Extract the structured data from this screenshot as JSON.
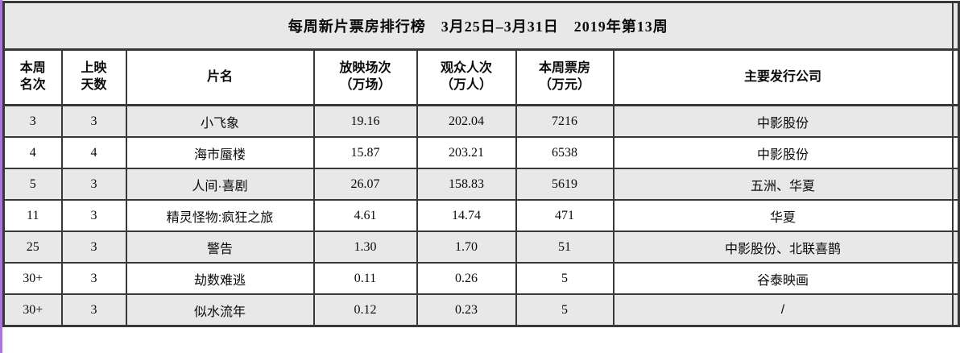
{
  "title": "每周新片票房排行榜　3月25日–3月31日　2019年第13周",
  "table": {
    "columns": [
      {
        "id": "rank",
        "lines": [
          "本周",
          "名次"
        ],
        "kind": "rank"
      },
      {
        "id": "days",
        "lines": [
          "上映",
          "天数"
        ],
        "kind": "days"
      },
      {
        "id": "film",
        "lines": [
          "片名"
        ],
        "kind": "name"
      },
      {
        "id": "screenings",
        "lines": [
          "放映场次",
          "（万场）"
        ],
        "kind": "number"
      },
      {
        "id": "audience",
        "lines": [
          "观众人次",
          "（万人）"
        ],
        "kind": "number"
      },
      {
        "id": "boxoffice",
        "lines": [
          "本周票房",
          "（万元）"
        ],
        "kind": "number"
      },
      {
        "id": "distributor",
        "lines": [
          "主要发行公司"
        ],
        "kind": "text"
      }
    ],
    "rows": [
      [
        "3",
        "3",
        "小飞象",
        "19.16",
        "202.04",
        "7216",
        "中影股份"
      ],
      [
        "4",
        "4",
        "海市蜃楼",
        "15.87",
        "203.21",
        "6538",
        "中影股份"
      ],
      [
        "5",
        "3",
        "人间·喜剧",
        "26.07",
        "158.83",
        "5619",
        "五洲、华夏"
      ],
      [
        "11",
        "3",
        "精灵怪物:疯狂之旅",
        "4.61",
        "14.74",
        "471",
        "华夏"
      ],
      [
        "25",
        "3",
        "警告",
        "1.30",
        "1.70",
        "51",
        "中影股份、北联喜鹊"
      ],
      [
        "30+",
        "3",
        "劫数难逃",
        "0.11",
        "0.26",
        "5",
        "谷泰映画"
      ],
      [
        "30+",
        "3",
        "似水流年",
        "0.12",
        "0.23",
        "5",
        "/"
      ]
    ]
  },
  "chart_data": {
    "type": "table",
    "title": "每周新片票房排行榜　3月25日–3月31日　2019年第13周",
    "columns": [
      "本周名次",
      "上映天数",
      "片名",
      "放映场次（万场）",
      "观众人次（万人）",
      "本周票房（万元）",
      "主要发行公司"
    ],
    "rows": [
      [
        "3",
        "3",
        "小飞象",
        19.16,
        202.04,
        7216,
        "中影股份"
      ],
      [
        "4",
        "4",
        "海市蜃楼",
        15.87,
        203.21,
        6538,
        "中影股份"
      ],
      [
        "5",
        "3",
        "人间·喜剧",
        26.07,
        158.83,
        5619,
        "五洲、华夏"
      ],
      [
        "11",
        "3",
        "精灵怪物:疯狂之旅",
        4.61,
        14.74,
        471,
        "华夏"
      ],
      [
        "25",
        "3",
        "警告",
        1.3,
        1.7,
        51,
        "中影股份、北联喜鹊"
      ],
      [
        "30+",
        "3",
        "劫数难逃",
        0.11,
        0.26,
        5,
        "谷泰映画"
      ],
      [
        "30+",
        "3",
        "似水流年",
        0.12,
        0.23,
        5,
        "/"
      ]
    ]
  },
  "colors": {
    "row_alt_gray": "#e8e8e8",
    "border": "#383838",
    "edge_purple": "#a678d4"
  }
}
